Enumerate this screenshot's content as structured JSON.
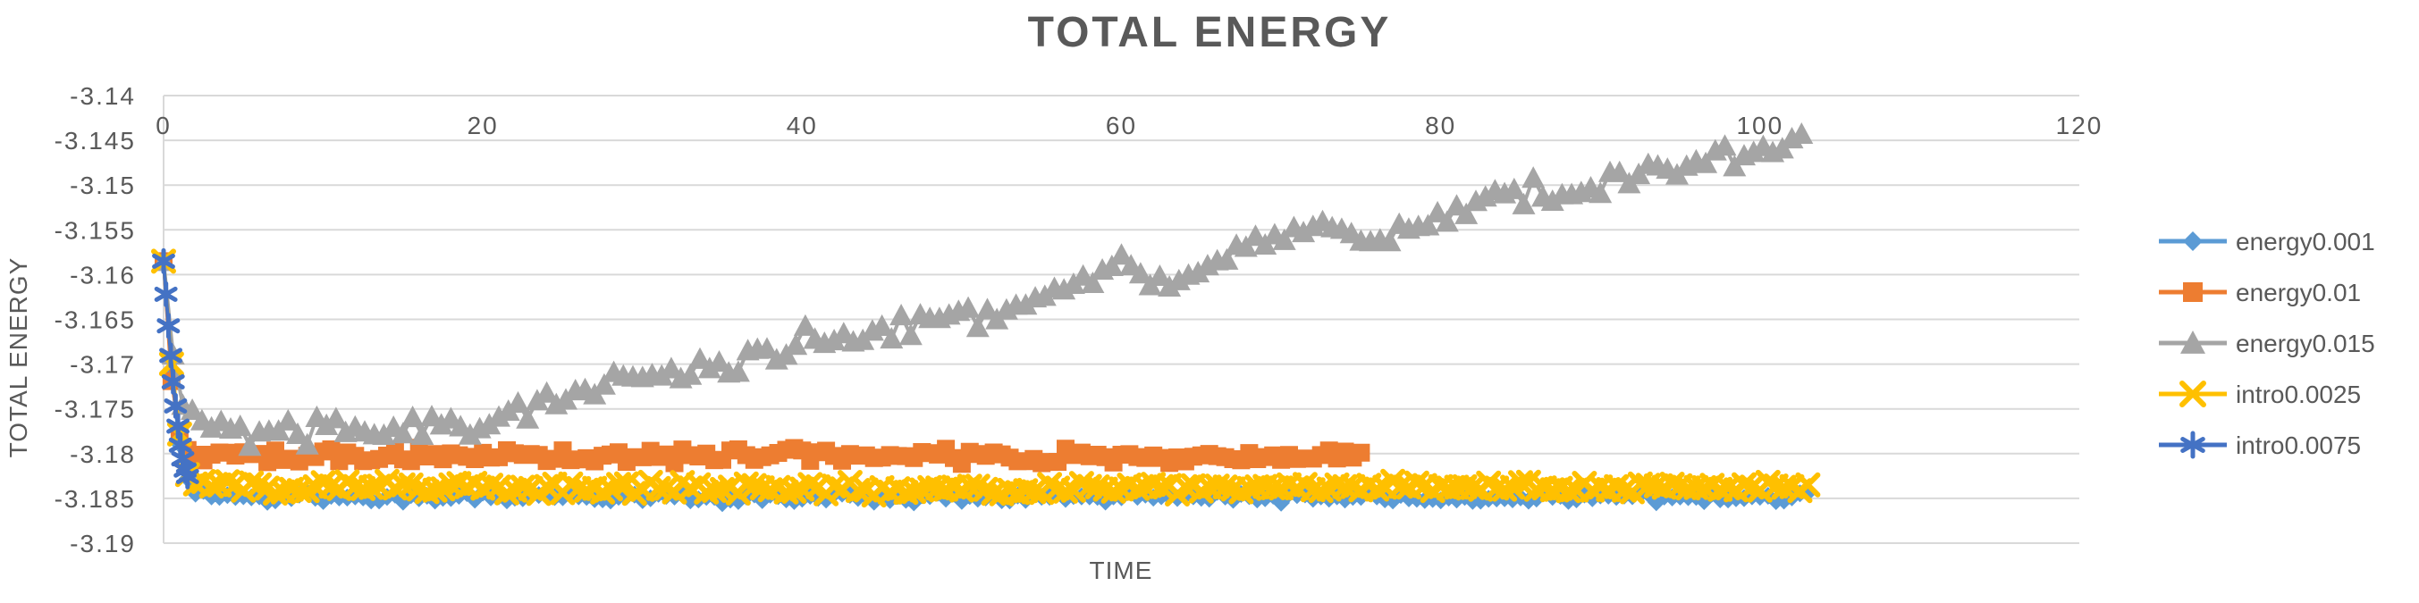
{
  "chart": {
    "title": "TOTAL ENERGY",
    "y_axis_title": "TOTAL ENERGY",
    "x_axis_title": "TIME",
    "text_color": "#595959",
    "gridline_color": "#D9D9D9",
    "background_color": "#FFFFFF"
  },
  "chart_data": {
    "type": "line",
    "title": "TOTAL ENERGY",
    "xlabel": "TIME",
    "ylabel": "TOTAL ENERGY",
    "xlim": [
      0,
      120
    ],
    "ylim": [
      -3.19,
      -3.14
    ],
    "grid": true,
    "legend_position": "right",
    "x_ticks": [
      "0",
      "20",
      "40",
      "60",
      "80",
      "100",
      "120"
    ],
    "y_ticks": [
      "-3.14",
      "-3.145",
      "-3.15",
      "-3.155",
      "-3.16",
      "-3.165",
      "-3.17",
      "-3.175",
      "-3.18",
      "-3.185",
      "-3.19"
    ],
    "series": [
      {
        "name": "energy0.001",
        "color": "#5B9BD5",
        "marker": "diamond",
        "marker_size": 10,
        "dt": 0.5,
        "t_end": 103,
        "noise_amp": 0.0007,
        "seed": 7,
        "anchors": [
          [
            0,
            -3.1585
          ],
          [
            0.5,
            -3.171
          ],
          [
            1,
            -3.179
          ],
          [
            1.5,
            -3.183
          ],
          [
            2,
            -3.1845
          ],
          [
            5,
            -3.1848
          ],
          [
            20,
            -3.1848
          ],
          [
            40,
            -3.1849
          ],
          [
            60,
            -3.1848
          ],
          [
            80,
            -3.1849
          ],
          [
            100,
            -3.1848
          ],
          [
            103,
            -3.1847
          ]
        ]
      },
      {
        "name": "energy0.01",
        "color": "#ED7D31",
        "marker": "square",
        "marker_size": 10,
        "dt": 0.5,
        "t_end": 75,
        "noise_amp": 0.001,
        "seed": 13,
        "anchors": [
          [
            0,
            -3.1585
          ],
          [
            0.5,
            -3.172
          ],
          [
            1,
            -3.1775
          ],
          [
            1.5,
            -3.1795
          ],
          [
            2,
            -3.1802
          ],
          [
            10,
            -3.1803
          ],
          [
            30,
            -3.1802
          ],
          [
            50,
            -3.1804
          ],
          [
            70,
            -3.1803
          ],
          [
            75,
            -3.1804
          ]
        ]
      },
      {
        "name": "energy0.015",
        "color": "#A5A5A5",
        "marker": "triangle",
        "marker_size": 13,
        "dt": 0.6,
        "t_end": 103,
        "noise_amp": 0.0018,
        "seed": 29,
        "anchors": [
          [
            0,
            -3.1585
          ],
          [
            0.5,
            -3.168
          ],
          [
            1,
            -3.1735
          ],
          [
            2,
            -3.1765
          ],
          [
            5,
            -3.1775
          ],
          [
            10,
            -3.1775
          ],
          [
            15,
            -3.1772
          ],
          [
            20,
            -3.1768
          ],
          [
            23,
            -3.175
          ],
          [
            26,
            -3.1725
          ],
          [
            30,
            -3.1715
          ],
          [
            35,
            -3.17
          ],
          [
            40,
            -3.1675
          ],
          [
            45,
            -3.1665
          ],
          [
            50,
            -3.1645
          ],
          [
            55,
            -3.1628
          ],
          [
            60,
            -3.1595
          ],
          [
            63,
            -3.1605
          ],
          [
            66,
            -3.158
          ],
          [
            70,
            -3.1555
          ],
          [
            73,
            -3.1545
          ],
          [
            76,
            -3.156
          ],
          [
            80,
            -3.1535
          ],
          [
            83,
            -3.151
          ],
          [
            86,
            -3.1505
          ],
          [
            89,
            -3.1512
          ],
          [
            92,
            -3.149
          ],
          [
            95,
            -3.148
          ],
          [
            98,
            -3.147
          ],
          [
            100,
            -3.1462
          ],
          [
            102,
            -3.1448
          ],
          [
            103,
            -3.146
          ]
        ]
      },
      {
        "name": "intro0.0025",
        "color": "#FFC000",
        "marker": "x",
        "marker_size": 11,
        "dt": 0.5,
        "t_end": 103,
        "noise_amp": 0.0008,
        "seed": 41,
        "anchors": [
          [
            0,
            -3.1585
          ],
          [
            0.5,
            -3.17
          ],
          [
            1,
            -3.178
          ],
          [
            1.5,
            -3.182
          ],
          [
            2,
            -3.1836
          ],
          [
            5,
            -3.1838
          ],
          [
            20,
            -3.1838
          ],
          [
            40,
            -3.1839
          ],
          [
            60,
            -3.1838
          ],
          [
            80,
            -3.1838
          ],
          [
            100,
            -3.1837
          ],
          [
            103,
            -3.1838
          ]
        ]
      },
      {
        "name": "intro0.0075",
        "color": "#4472C4",
        "marker": "asterisk",
        "marker_size": 12,
        "dt": 0.15,
        "t_end": 1.5,
        "noise_amp": 0.0002,
        "seed": 53,
        "anchors": [
          [
            0,
            -3.1585
          ],
          [
            0.15,
            -3.1622
          ],
          [
            0.3,
            -3.1657
          ],
          [
            0.45,
            -3.169
          ],
          [
            0.6,
            -3.172
          ],
          [
            0.75,
            -3.1747
          ],
          [
            0.9,
            -3.177
          ],
          [
            1.05,
            -3.179
          ],
          [
            1.2,
            -3.1806
          ],
          [
            1.35,
            -3.1818
          ],
          [
            1.5,
            -3.1826
          ]
        ]
      }
    ]
  }
}
